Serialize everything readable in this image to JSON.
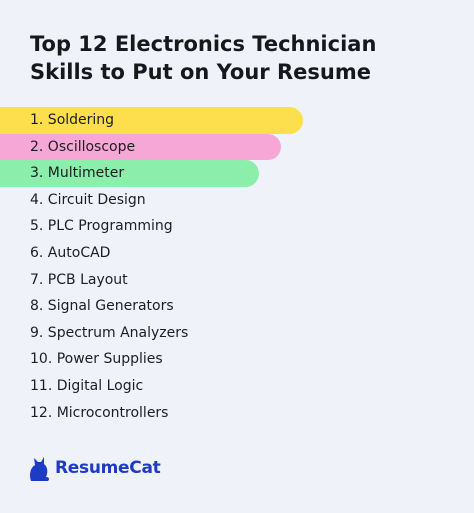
{
  "header": {
    "title_lines": [
      "Top 12 Electronics Technician",
      "Skills to Put on Your Resume"
    ]
  },
  "items": [
    "1. Soldering",
    "2. Oscilloscope",
    "3. Multimeter",
    "4. Circuit Design",
    "5. PLC Programming",
    "6. AutoCAD",
    "7. PCB Layout",
    "8. Signal Generators",
    "9. Spectrum Analyzers",
    "10. Power Supplies",
    "11. Digital Logic",
    "12. Microcontrollers"
  ],
  "brand": {
    "name": "ResumeCat"
  }
}
